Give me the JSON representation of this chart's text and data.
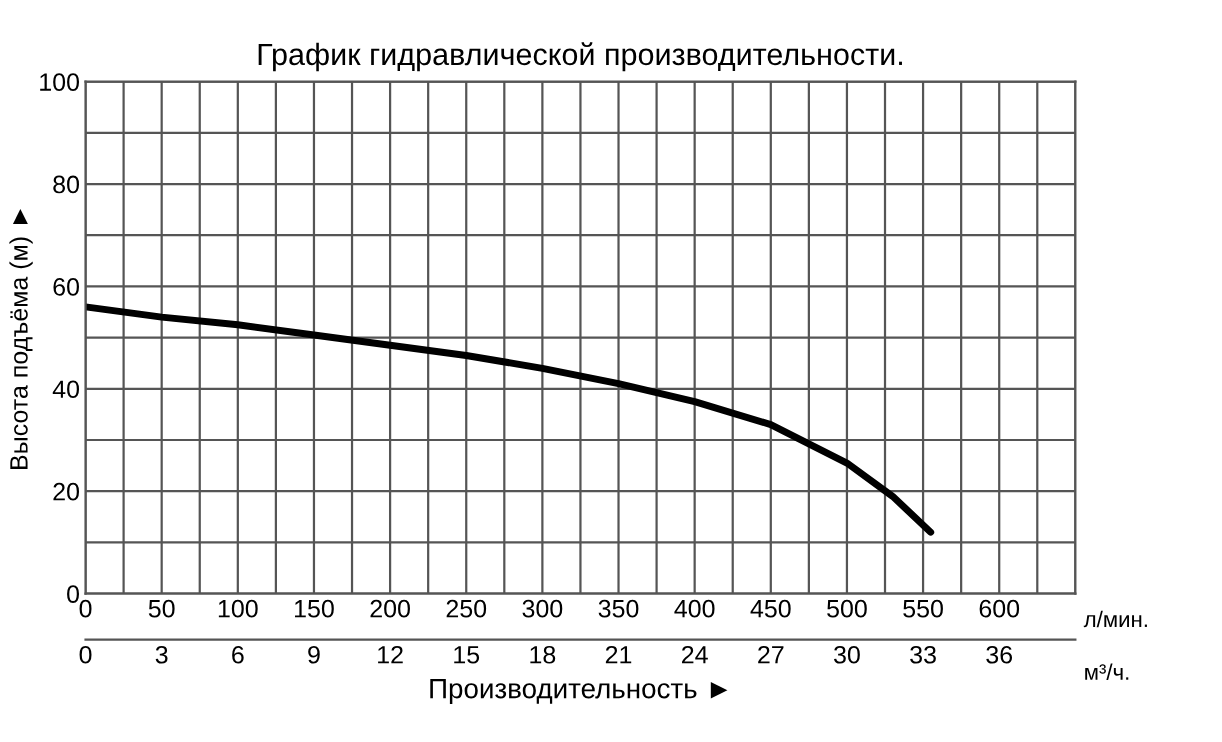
{
  "chart_data": {
    "type": "line",
    "title": "График гидравлической производительности.",
    "xlabel": "Производительность ►",
    "ylabel": "Высота подъёма (м) ►",
    "x2label": "м³/ч.",
    "annotations": [
      "л/мин."
    ],
    "x": [
      0,
      50,
      100,
      150,
      200,
      250,
      300,
      350,
      400,
      450,
      500,
      530,
      555
    ],
    "series": [
      {
        "color": "#000000",
        "values": [
          56,
          54,
          52.5,
          50.5,
          48.5,
          46.5,
          44,
          41,
          37.5,
          33,
          25.5,
          19,
          12
        ]
      }
    ],
    "xlim": [
      0,
      650
    ],
    "ylim": [
      0,
      100
    ],
    "xticks": [
      0,
      {
        "value": 25,
        "label": null
      },
      50,
      {
        "value": 75,
        "label": null
      },
      100,
      {
        "value": 125,
        "label": null
      },
      150,
      {
        "value": 175,
        "label": null
      },
      200,
      {
        "value": 225,
        "label": null
      },
      250,
      {
        "value": 275,
        "label": null
      },
      300,
      {
        "value": 325,
        "label": null
      },
      350,
      {
        "value": 375,
        "label": null
      },
      400,
      {
        "value": 425,
        "label": null
      },
      450,
      {
        "value": 475,
        "label": null
      },
      500,
      {
        "value": 525,
        "label": null
      },
      550,
      {
        "value": 575,
        "label": null
      },
      600,
      {
        "value": 625,
        "label": null
      },
      {
        "value": 650,
        "label": null
      }
    ],
    "yticks": [
      0,
      {
        "value": 10,
        "label": null
      },
      20,
      {
        "value": 30,
        "label": null
      },
      40,
      {
        "value": 50,
        "label": null
      },
      60,
      {
        "value": 70,
        "label": null
      },
      80,
      {
        "value": 90,
        "label": null
      },
      100
    ],
    "x2lim": [
      0,
      39
    ],
    "x2ticks": [
      0,
      3,
      6,
      9,
      12,
      15,
      18,
      21,
      24,
      27,
      30,
      33,
      36
    ],
    "grid": true,
    "marker": "none",
    "line_style": "solid"
  }
}
